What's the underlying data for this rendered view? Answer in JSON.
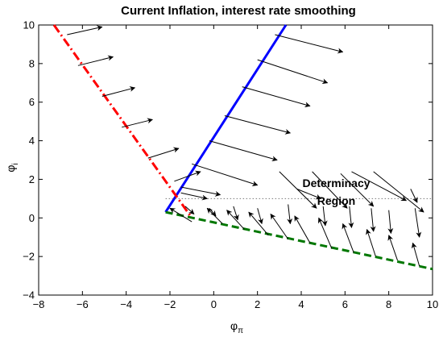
{
  "chart_data": {
    "type": "line",
    "title": "Current Inflation, interest rate smoothing",
    "xlabel": {
      "symbol": "φ",
      "subscript": "π"
    },
    "ylabel": {
      "symbol": "φ",
      "subscript": "i"
    },
    "xlim": [
      -8,
      10
    ],
    "ylim": [
      -4,
      10
    ],
    "xticks": [
      "−8",
      "−6",
      "−4",
      "−2",
      "0",
      "2",
      "4",
      "6",
      "8",
      "10"
    ],
    "yticks": [
      "−4",
      "−2",
      "0",
      "2",
      "4",
      "6",
      "8",
      "10"
    ],
    "grid": false,
    "annotation": {
      "lines": [
        "Determinacy",
        "Region"
      ],
      "x": 5.6,
      "y": 1.6
    },
    "series": [
      {
        "style": "solid",
        "color": "#0000ff",
        "points": [
          [
            -2.2,
            0.3
          ],
          [
            3.3,
            10
          ]
        ]
      },
      {
        "style": "dash-dot",
        "color": "#ff0000",
        "points": [
          [
            -7.3,
            10
          ],
          [
            -1.0,
            0.0
          ]
        ]
      },
      {
        "style": "dashed",
        "color": "#007700",
        "points": [
          [
            -2.2,
            0.3
          ],
          [
            10,
            -2.65
          ]
        ]
      },
      {
        "style": "dotted",
        "color": "#777777",
        "points": [
          [
            -2.2,
            1.0
          ],
          [
            10,
            1.0
          ]
        ]
      }
    ],
    "arrows": [
      {
        "from": [
          -6.7,
          9.5
        ],
        "to": [
          -5.1,
          9.9
        ]
      },
      {
        "from": [
          -6.2,
          7.9
        ],
        "to": [
          -4.6,
          8.35
        ]
      },
      {
        "from": [
          -5.1,
          6.3
        ],
        "to": [
          -3.6,
          6.75
        ]
      },
      {
        "from": [
          -4.2,
          4.7
        ],
        "to": [
          -2.8,
          5.1
        ]
      },
      {
        "from": [
          -3.0,
          3.1
        ],
        "to": [
          -1.6,
          3.6
        ]
      },
      {
        "from": [
          -1.8,
          1.9
        ],
        "to": [
          -0.6,
          2.4
        ]
      },
      {
        "from": [
          -1.5,
          1.3
        ],
        "to": [
          -0.3,
          1.0
        ]
      },
      {
        "from": [
          2.8,
          9.5
        ],
        "to": [
          5.9,
          8.6
        ]
      },
      {
        "from": [
          2.0,
          8.2
        ],
        "to": [
          5.2,
          7.0
        ]
      },
      {
        "from": [
          1.3,
          6.8
        ],
        "to": [
          4.4,
          5.8
        ]
      },
      {
        "from": [
          0.5,
          5.3
        ],
        "to": [
          3.5,
          4.4
        ]
      },
      {
        "from": [
          -0.2,
          4.0
        ],
        "to": [
          2.9,
          3.0
        ]
      },
      {
        "from": [
          -1.0,
          2.8
        ],
        "to": [
          2.0,
          1.7
        ]
      },
      {
        "from": [
          -1.5,
          1.6
        ],
        "to": [
          0.3,
          1.2
        ]
      },
      {
        "from": [
          3.0,
          2.4
        ],
        "to": [
          4.7,
          0.5
        ]
      },
      {
        "from": [
          4.5,
          2.4
        ],
        "to": [
          6.1,
          0.5
        ]
      },
      {
        "from": [
          5.8,
          2.3
        ],
        "to": [
          7.3,
          0.6
        ]
      },
      {
        "from": [
          6.3,
          2.4
        ],
        "to": [
          8.8,
          0.9
        ]
      },
      {
        "from": [
          7.3,
          2.4
        ],
        "to": [
          9.6,
          0.3
        ]
      },
      {
        "from": [
          3.8,
          1.5
        ],
        "to": [
          4.9,
          1.0
        ]
      },
      {
        "from": [
          9.0,
          1.5
        ],
        "to": [
          9.3,
          0.8
        ]
      },
      {
        "from": [
          -1.0,
          -0.2
        ],
        "to": [
          -2.0,
          0.5
        ]
      },
      {
        "from": [
          0.4,
          -0.3
        ],
        "to": [
          -0.3,
          0.5
        ]
      },
      {
        "from": [
          1.4,
          -0.6
        ],
        "to": [
          0.6,
          0.4
        ]
      },
      {
        "from": [
          2.5,
          -0.9
        ],
        "to": [
          1.6,
          0.3
        ]
      },
      {
        "from": [
          3.4,
          -1.1
        ],
        "to": [
          2.6,
          0.2
        ]
      },
      {
        "from": [
          4.4,
          -1.3
        ],
        "to": [
          3.7,
          0.1
        ]
      },
      {
        "from": [
          5.4,
          -1.6
        ],
        "to": [
          4.8,
          0.0
        ]
      },
      {
        "from": [
          6.4,
          -1.8
        ],
        "to": [
          5.9,
          -0.3
        ]
      },
      {
        "from": [
          7.4,
          -2.0
        ],
        "to": [
          7.0,
          -0.6
        ]
      },
      {
        "from": [
          8.4,
          -2.2
        ],
        "to": [
          8.0,
          -0.9
        ]
      },
      {
        "from": [
          9.4,
          -2.5
        ],
        "to": [
          9.1,
          -1.3
        ]
      },
      {
        "from": [
          -1.3,
          0.6
        ],
        "to": [
          -0.9,
          0.2
        ]
      },
      {
        "from": [
          -0.2,
          0.5
        ],
        "to": [
          0.1,
          0.1
        ]
      },
      {
        "from": [
          0.9,
          0.6
        ],
        "to": [
          1.1,
          -0.1
        ]
      },
      {
        "from": [
          2.0,
          0.5
        ],
        "to": [
          2.2,
          -0.3
        ]
      },
      {
        "from": [
          3.4,
          0.7
        ],
        "to": [
          3.5,
          -0.3
        ]
      },
      {
        "from": [
          5.0,
          0.6
        ],
        "to": [
          5.1,
          -0.4
        ]
      },
      {
        "from": [
          6.2,
          0.6
        ],
        "to": [
          6.3,
          -0.5
        ]
      },
      {
        "from": [
          7.2,
          0.5
        ],
        "to": [
          7.3,
          -0.7
        ]
      },
      {
        "from": [
          8.0,
          0.4
        ],
        "to": [
          8.1,
          -0.8
        ]
      },
      {
        "from": [
          9.2,
          0.5
        ],
        "to": [
          9.4,
          -1.0
        ]
      }
    ]
  }
}
